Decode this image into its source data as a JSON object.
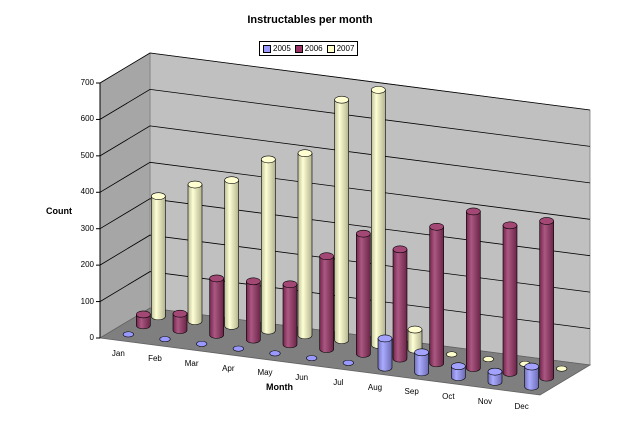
{
  "chart_data": {
    "type": "bar",
    "style": "3d-cylinder",
    "title": "Instructables per month",
    "xlabel": "Month",
    "ylabel": "Count",
    "ylim": [
      0,
      700
    ],
    "yticks": [
      0,
      100,
      200,
      300,
      400,
      500,
      600,
      700
    ],
    "grid": true,
    "legend_position": "top-center",
    "categories": [
      "Jan",
      "Feb",
      "Mar",
      "Apr",
      "May",
      "Jun",
      "Jul",
      "Aug",
      "Sep",
      "Oct",
      "Nov",
      "Dec"
    ],
    "series": [
      {
        "name": "2005",
        "color": "#9999ff",
        "values": [
          0,
          0,
          0,
          0,
          0,
          0,
          0,
          80,
          55,
          30,
          28,
          55
        ]
      },
      {
        "name": "2006",
        "color": "#993366",
        "values": [
          30,
          45,
          155,
          160,
          165,
          255,
          330,
          300,
          375,
          430,
          405,
          430
        ]
      },
      {
        "name": "2007",
        "color": "#ffffcc",
        "values": [
          330,
          375,
          400,
          470,
          500,
          660,
          700,
          55,
          0,
          0,
          0,
          0
        ]
      }
    ]
  }
}
